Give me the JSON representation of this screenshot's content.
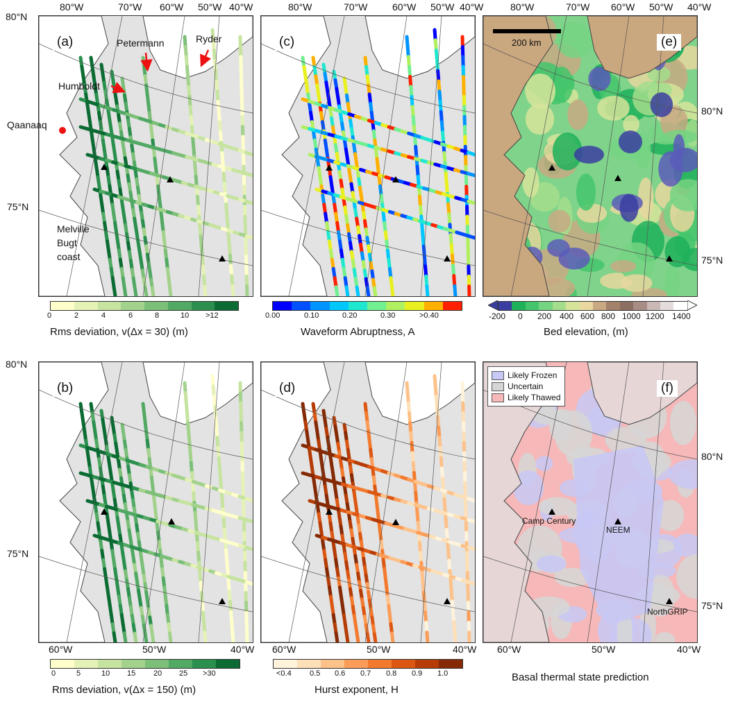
{
  "panels": {
    "a": {
      "label": "(a)"
    },
    "b": {
      "label": "(b)"
    },
    "c": {
      "label": "(c)"
    },
    "d": {
      "label": "(d)"
    },
    "e": {
      "label": "(e)"
    },
    "f": {
      "label": "(f)"
    }
  },
  "top_lon_labels": [
    "80°W",
    "70°W",
    "60°W",
    "50°W",
    "40°W"
  ],
  "bottom_lon_labels": [
    "60°W",
    "50°W",
    "40°W"
  ],
  "lat_labels": {
    "lat80": "80°N",
    "lat75": "75°N"
  },
  "annotations": {
    "petermann": "Petermann",
    "ryder": "Ryder",
    "humboldt": "Humboldt",
    "qaanaaq": "Qaanaaq",
    "melville_1": "Melville",
    "melville_2": "Bugt",
    "melville_3": "coast"
  },
  "scale_bar": {
    "label": "200 km"
  },
  "sites": {
    "camp_century": "Camp Century",
    "neem": "NEEM",
    "northgrip": "NorthGRIP"
  },
  "legend_f": [
    {
      "label": "Likely Frozen",
      "color": "#c8c8f4"
    },
    {
      "label": "Uncertain",
      "color": "#d6d6d6"
    },
    {
      "label": "Likely Thawed",
      "color": "#f6b8b8"
    }
  ],
  "colorbars": {
    "a": {
      "title": "Rms deviation, v(Δx = 30)  (m)",
      "ticks": [
        "0",
        "2",
        "4",
        "6",
        "8",
        "10",
        ">12"
      ],
      "colors": [
        "#ffffcc",
        "#e5f2b6",
        "#c6e3a0",
        "#a3d28c",
        "#7cbf78",
        "#52a964",
        "#2b8f4e",
        "#0b6b33"
      ]
    },
    "b": {
      "title": "Rms deviation, v(Δx = 150)  (m)",
      "ticks": [
        "0",
        "5",
        "10",
        "15",
        "20",
        "25",
        ">30"
      ],
      "colors": [
        "#ffffcc",
        "#e5f2b6",
        "#c6e3a0",
        "#a3d28c",
        "#7cbf78",
        "#52a964",
        "#2b8f4e",
        "#0b6b33"
      ]
    },
    "c": {
      "title": "Waveform Abruptness,  A",
      "ticks": [
        "0.00",
        "0.10",
        "0.20",
        "0.30",
        ">0.40"
      ],
      "colors": [
        "#0000ff",
        "#0050ff",
        "#0094ff",
        "#00c8ff",
        "#20e8d0",
        "#70f090",
        "#b0f060",
        "#e8f020",
        "#ffb000",
        "#ff2000"
      ]
    },
    "d": {
      "title": "Hurst exponent, H",
      "ticks": [
        "<0.4",
        "0.5",
        "0.6",
        "0.7",
        "0.8",
        "0.9",
        "1.0"
      ],
      "colors": [
        "#fff3dc",
        "#fde0b8",
        "#fdc18a",
        "#fb9d58",
        "#f27a2e",
        "#dc5712",
        "#b53c06",
        "#852a04"
      ]
    },
    "e": {
      "title": "Bed elevation,  (m)",
      "ticks": [
        "-200",
        "0",
        "200",
        "400",
        "600",
        "800",
        "1000",
        "1200",
        "1400"
      ],
      "colors": [
        "#3a3ea0",
        "#1fb05a",
        "#44c56c",
        "#74d482",
        "#a4dd8c",
        "#d6e49a",
        "#e8d79e",
        "#c8a982",
        "#a2826a",
        "#8c6f62",
        "#a88c86",
        "#c9b8b6",
        "#e4dcdc",
        "#ffffff"
      ]
    },
    "f": {
      "title": "Basal thermal state prediction"
    }
  }
}
